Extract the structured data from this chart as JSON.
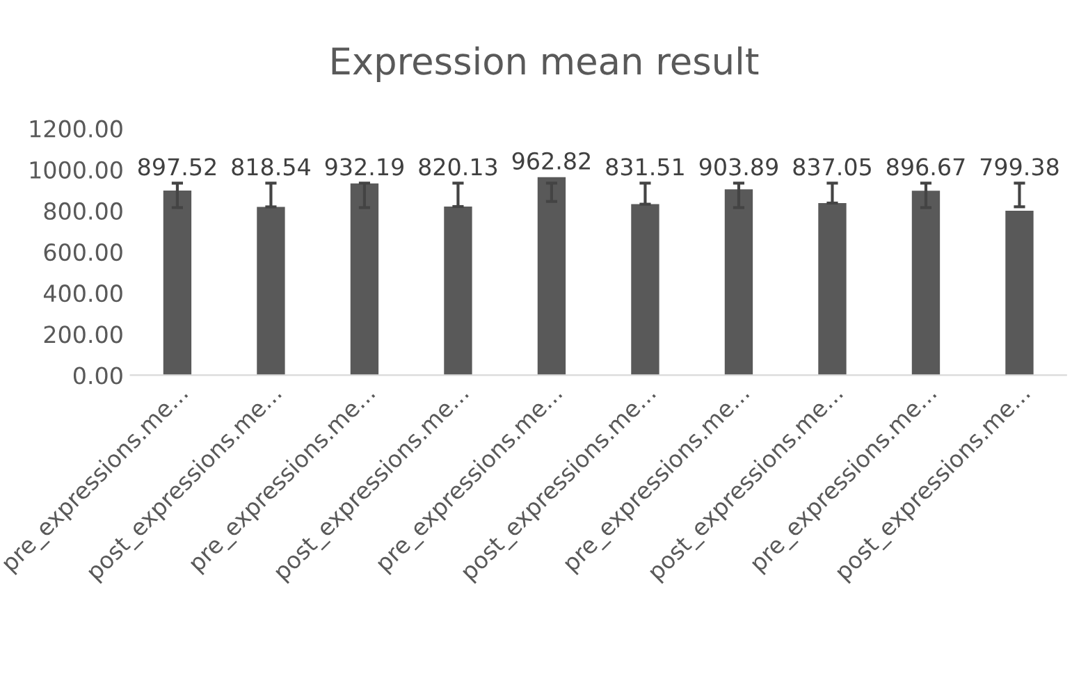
{
  "chart_data": {
    "type": "bar",
    "title": "Expression mean result",
    "categories": [
      "pre_expressions.me...",
      "post_expressions.me...",
      "pre_expressions.me...",
      "post_expressions.me...",
      "pre_expressions.me...",
      "post_expressions.me...",
      "pre_expressions.me...",
      "post_expressions.me...",
      "pre_expressions.me...",
      "post_expressions.me..."
    ],
    "values": [
      897.52,
      818.54,
      932.19,
      820.13,
      962.82,
      831.51,
      903.89,
      837.05,
      896.67,
      799.38
    ],
    "errors": [
      [
        815,
        934
      ],
      [
        818.54,
        934
      ],
      [
        815,
        934
      ],
      [
        820.13,
        934
      ],
      [
        845,
        934
      ],
      [
        831.51,
        934
      ],
      [
        815,
        934
      ],
      [
        837.05,
        934
      ],
      [
        815,
        934
      ],
      [
        819,
        934
      ]
    ],
    "color": "#595959",
    "data_labels": true,
    "ylim": [
      0,
      1200
    ],
    "yticks": [
      {
        "value": 0,
        "label": "0.00"
      },
      {
        "value": 200,
        "label": "200.00"
      },
      {
        "value": 400,
        "label": "400.00"
      },
      {
        "value": 600,
        "label": "600.00"
      },
      {
        "value": 800,
        "label": "800.00"
      },
      {
        "value": 1000,
        "label": "1000.00"
      },
      {
        "value": 1200,
        "label": "1200.00"
      }
    ],
    "grid": false
  }
}
